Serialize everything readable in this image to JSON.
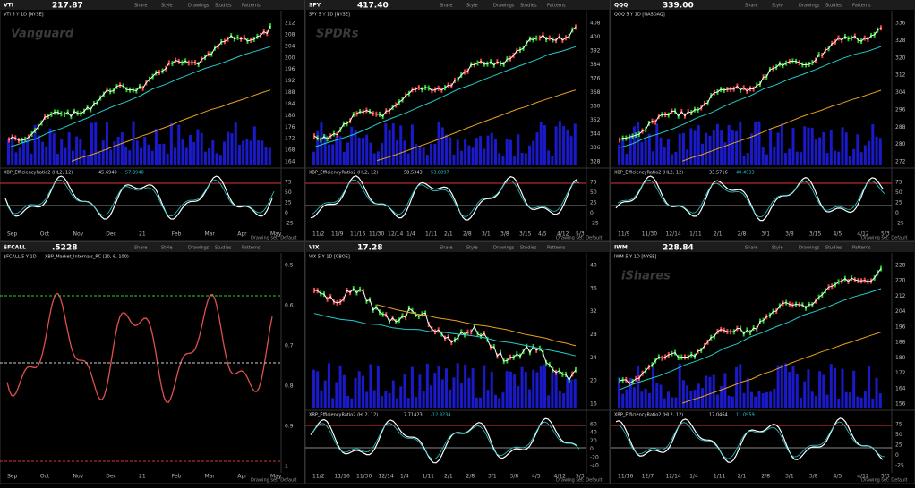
{
  "toolbar": [
    "Share",
    "Style",
    "Drawings",
    "Studies",
    "Patterns"
  ],
  "footer": "Drawing set: Default",
  "panels": [
    {
      "symbol": "VTI",
      "price": "217.87",
      "title": "VTI 5 Y 1D [NYSE]",
      "logo": "Vanguard",
      "study": "XBP_EfficiencyRatio2 (HL2, 12)",
      "study_values": [
        "45.6948",
        "57.3948"
      ],
      "x_labels": [
        "Sep",
        "Oct",
        "Nov",
        "Dec",
        "21",
        "Feb",
        "Mar",
        "Apr",
        "May"
      ],
      "y_labels": [
        "212",
        "208",
        "204",
        "200",
        "196",
        "192",
        "188",
        "184",
        "180",
        "176",
        "172",
        "168",
        "164"
      ],
      "study_y_labels": [
        "75",
        "50",
        "25",
        "0",
        "-25"
      ]
    },
    {
      "symbol": "SPY",
      "price": "417.40",
      "title": "SPY 5 Y 1D [NYSE]",
      "logo": "SPDRs",
      "study": "XBP_EfficiencyRatio2 (HL2, 12)",
      "study_values": [
        "58.5343",
        "53.8897"
      ],
      "x_labels": [
        "11/2",
        "11/9",
        "11/16",
        "11/30",
        "12/14",
        "1/4",
        "1/11",
        "2/1",
        "2/8",
        "3/1",
        "3/8",
        "3/15",
        "4/5",
        "4/12",
        "5/3"
      ],
      "y_labels": [
        "408",
        "400",
        "392",
        "384",
        "376",
        "368",
        "360",
        "352",
        "344",
        "336",
        "328"
      ],
      "study_y_labels": [
        "75",
        "50",
        "25",
        "0",
        "-25"
      ]
    },
    {
      "symbol": "QQQ",
      "price": "339.00",
      "title": "QQQ 5 Y 1D [NASDAQ]",
      "study": "XBP_EfficiencyRatio2 (HL2, 12)",
      "study_values": [
        "33.5716",
        "40.4933"
      ],
      "x_labels": [
        "11/9",
        "11/30",
        "12/14",
        "1/11",
        "2/1",
        "2/8",
        "3/1",
        "3/8",
        "3/15",
        "4/5",
        "4/12",
        "5/3"
      ],
      "y_labels": [
        "336",
        "328",
        "320",
        "312",
        "304",
        "296",
        "288",
        "280",
        "272"
      ],
      "study_y_labels": [
        "75",
        "50",
        "25",
        "0",
        "-25"
      ]
    },
    {
      "symbol": "$FCALL",
      "price": ".5228",
      "title": "$FCALL 5 Y 1D",
      "study": "XBP_Market_Internals_PC (20, 6, 100)",
      "x_labels": [
        "Sep",
        "Oct",
        "Nov",
        "Dec",
        "21",
        "Feb",
        "Mar",
        "Apr",
        "May"
      ],
      "y_labels": [
        "0.5",
        "0.6",
        "0.7",
        "0.8",
        "0.9",
        "1"
      ]
    },
    {
      "symbol": "VIX",
      "price": "17.28",
      "title": "VIX 5 Y 1D [CBOE]",
      "study": "XBP_EfficiencyRatio2 (HL2, 12)",
      "study_values": [
        "7.71423",
        "-12.9234"
      ],
      "x_labels": [
        "11/2",
        "11/16",
        "11/30",
        "12/14",
        "1/4",
        "1/11",
        "2/1",
        "2/8",
        "3/1",
        "3/8",
        "4/5",
        "4/12",
        "5/3"
      ],
      "y_labels": [
        "40",
        "36",
        "32",
        "28",
        "24",
        "20",
        "16"
      ],
      "study_y_labels": [
        "60",
        "40",
        "20",
        "0",
        "-20",
        "-40"
      ]
    },
    {
      "symbol": "IWM",
      "price": "228.84",
      "title": "IWM 5 Y 1D [NYSE]",
      "logo": "iShares",
      "study": "XBP_EfficiencyRatio2 (HL2, 12)",
      "study_values": [
        "17.0464",
        "11.0959"
      ],
      "x_labels": [
        "11/16",
        "12/7",
        "12/14",
        "1/4",
        "1/11",
        "2/1",
        "2/8",
        "3/1",
        "3/8",
        "4/5",
        "4/12",
        "5/3"
      ],
      "y_labels": [
        "228",
        "220",
        "212",
        "204",
        "196",
        "188",
        "180",
        "172",
        "164",
        "156"
      ],
      "study_y_labels": [
        "75",
        "50",
        "25",
        "0",
        "-25"
      ]
    }
  ]
}
